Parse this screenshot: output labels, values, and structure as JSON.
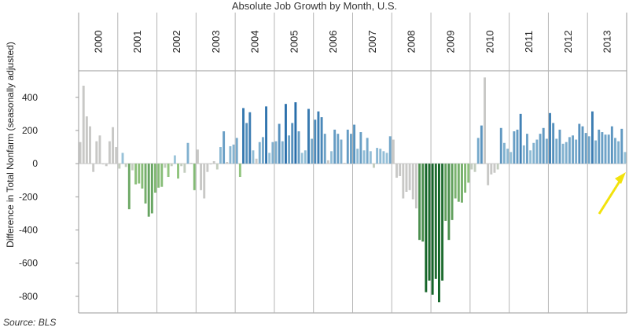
{
  "chart_data": {
    "type": "bar",
    "title": "Absolute Job Growth by Month, U.S.",
    "ylabel": "Difference in Total Nonfarm (seasonally adjusted)",
    "source": "Source: BLS",
    "ylim": [
      -900,
      560
    ],
    "yticks": [
      400,
      200,
      0,
      -200,
      -400,
      -600,
      -800
    ],
    "years": [
      "2000",
      "2001",
      "2002",
      "2003",
      "2004",
      "2005",
      "2006",
      "2007",
      "2008",
      "2009",
      "2010",
      "2011",
      "2012",
      "2013"
    ],
    "annotation": "yellow arrow pointing to the latest month",
    "values": [
      130,
      470,
      285,
      225,
      -50,
      135,
      170,
      0,
      -15,
      135,
      220,
      100,
      -30,
      65,
      -20,
      -275,
      -40,
      -125,
      -120,
      -150,
      -240,
      -320,
      -300,
      -175,
      -145,
      -140,
      -25,
      -80,
      -15,
      50,
      -90,
      -15,
      -55,
      125,
      5,
      -160,
      85,
      -160,
      -210,
      -50,
      -5,
      15,
      -35,
      100,
      195,
      10,
      105,
      115,
      155,
      -80,
      335,
      245,
      310,
      80,
      30,
      130,
      160,
      345,
      65,
      130,
      135,
      240,
      135,
      360,
      170,
      245,
      370,
      195,
      65,
      80,
      330,
      150,
      265,
      315,
      280,
      180,
      20,
      75,
      205,
      180,
      145,
      5,
      205,
      180,
      235,
      90,
      190,
      80,
      155,
      75,
      -25,
      95,
      90,
      75,
      65,
      165,
      145,
      -85,
      -75,
      -210,
      -170,
      -160,
      -215,
      -270,
      -460,
      -470,
      -775,
      -705,
      -790,
      -695,
      -835,
      -705,
      -345,
      -460,
      -340,
      -210,
      -230,
      -235,
      -175,
      -115,
      -35,
      -50,
      155,
      230,
      520,
      -130,
      -65,
      -55,
      -35,
      215,
      125,
      90,
      70,
      195,
      205,
      300,
      110,
      180,
      80,
      125,
      145,
      180,
      215,
      150,
      305,
      245,
      150,
      205,
      120,
      130,
      160,
      170,
      145,
      240,
      225,
      185,
      165,
      315,
      140,
      205,
      190,
      175,
      175,
      225,
      155,
      135,
      210,
      70
    ]
  }
}
